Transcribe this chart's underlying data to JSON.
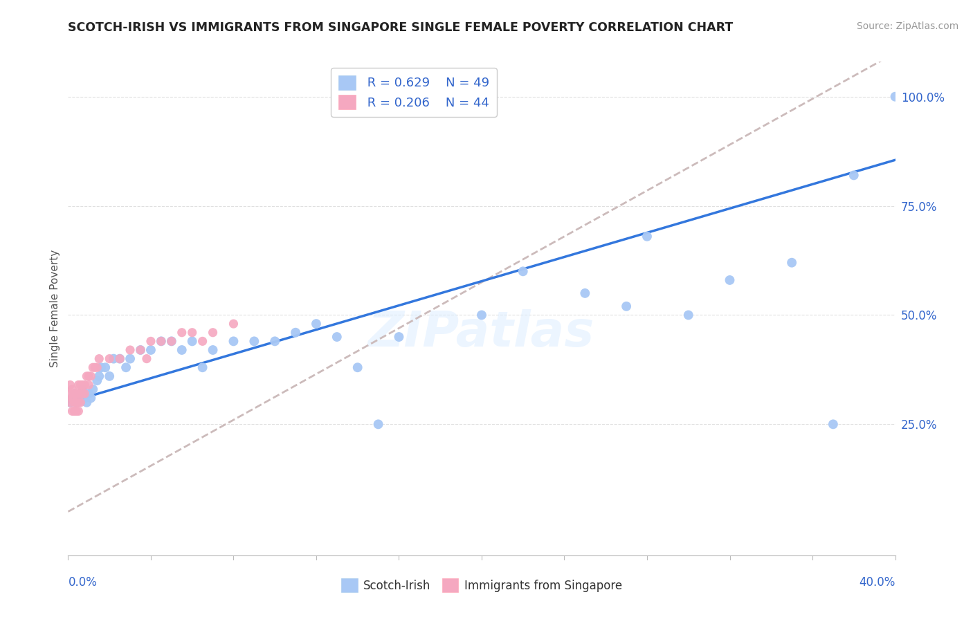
{
  "title": "SCOTCH-IRISH VS IMMIGRANTS FROM SINGAPORE SINGLE FEMALE POVERTY CORRELATION CHART",
  "source": "Source: ZipAtlas.com",
  "ylabel": "Single Female Poverty",
  "xlim": [
    0.0,
    0.4
  ],
  "ylim": [
    -0.05,
    1.08
  ],
  "yticks": [
    0.25,
    0.5,
    0.75,
    1.0
  ],
  "ytick_labels": [
    "25.0%",
    "50.0%",
    "75.0%",
    "100.0%"
  ],
  "xtick_left": "0.0%",
  "xtick_right": "40.0%",
  "legend_r1": "R = 0.629",
  "legend_n1": "N = 49",
  "legend_r2": "R = 0.206",
  "legend_n2": "N = 44",
  "series1_label": "Scotch-Irish",
  "series2_label": "Immigrants from Singapore",
  "series1_color": "#a8c8f5",
  "series2_color": "#f5a8c0",
  "trendline1_color": "#3377dd",
  "trendline2_color": "#ccbbbb",
  "watermark": "ZIPatlas",
  "scotch_irish_x": [
    0.001,
    0.002,
    0.003,
    0.004,
    0.005,
    0.006,
    0.007,
    0.008,
    0.009,
    0.01,
    0.011,
    0.012,
    0.014,
    0.015,
    0.016,
    0.018,
    0.02,
    0.022,
    0.025,
    0.028,
    0.03,
    0.035,
    0.04,
    0.045,
    0.05,
    0.055,
    0.06,
    0.065,
    0.07,
    0.08,
    0.09,
    0.1,
    0.11,
    0.12,
    0.13,
    0.14,
    0.15,
    0.16,
    0.2,
    0.22,
    0.25,
    0.27,
    0.3,
    0.32,
    0.35,
    0.38,
    0.4,
    0.37,
    0.28
  ],
  "scotch_irish_y": [
    0.3,
    0.31,
    0.32,
    0.3,
    0.31,
    0.32,
    0.33,
    0.31,
    0.3,
    0.32,
    0.31,
    0.33,
    0.35,
    0.36,
    0.38,
    0.38,
    0.36,
    0.4,
    0.4,
    0.38,
    0.4,
    0.42,
    0.42,
    0.44,
    0.44,
    0.42,
    0.44,
    0.38,
    0.42,
    0.44,
    0.44,
    0.44,
    0.46,
    0.48,
    0.45,
    0.38,
    0.25,
    0.45,
    0.5,
    0.6,
    0.55,
    0.52,
    0.5,
    0.58,
    0.62,
    0.82,
    1.0,
    0.25,
    0.68
  ],
  "singapore_x": [
    0.001,
    0.001,
    0.001,
    0.002,
    0.002,
    0.002,
    0.003,
    0.003,
    0.003,
    0.004,
    0.004,
    0.004,
    0.005,
    0.005,
    0.005,
    0.005,
    0.006,
    0.006,
    0.006,
    0.007,
    0.007,
    0.008,
    0.008,
    0.009,
    0.01,
    0.01,
    0.011,
    0.012,
    0.013,
    0.014,
    0.015,
    0.02,
    0.025,
    0.03,
    0.035,
    0.038,
    0.04,
    0.045,
    0.05,
    0.055,
    0.06,
    0.065,
    0.07,
    0.08
  ],
  "singapore_y": [
    0.3,
    0.32,
    0.34,
    0.28,
    0.31,
    0.33,
    0.28,
    0.3,
    0.32,
    0.28,
    0.3,
    0.32,
    0.28,
    0.3,
    0.32,
    0.34,
    0.3,
    0.32,
    0.34,
    0.32,
    0.34,
    0.32,
    0.34,
    0.36,
    0.34,
    0.36,
    0.36,
    0.38,
    0.38,
    0.38,
    0.4,
    0.4,
    0.4,
    0.42,
    0.42,
    0.4,
    0.44,
    0.44,
    0.44,
    0.46,
    0.46,
    0.44,
    0.46,
    0.48
  ]
}
